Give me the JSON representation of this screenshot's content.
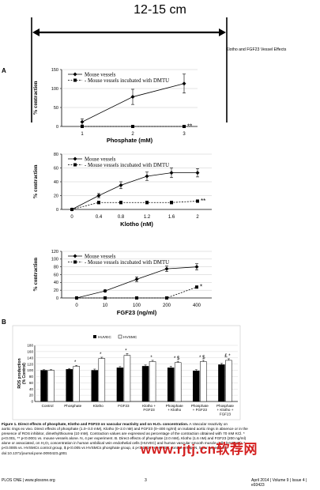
{
  "ruler": {
    "label": "12-15 cm"
  },
  "header": {
    "running_title": "Klotho and FGF23 Vessel Effects"
  },
  "panel_labels": {
    "a": "A",
    "b": "B"
  },
  "chart_data": [
    {
      "type": "line",
      "panel": "A-top",
      "x_categories": [
        "1",
        "2",
        "3"
      ],
      "xlabel": "Phosphate (mM)",
      "ylabel": "% contraction",
      "ylim": [
        0,
        150
      ],
      "yticks": [
        "0",
        "50",
        "100",
        "150"
      ],
      "series": [
        {
          "name": "Mouse vessels",
          "style": "solid-diamond",
          "values": [
            12,
            78,
            113
          ],
          "errors": [
            8,
            20,
            25
          ]
        },
        {
          "name": "Mouse vessels incubated with DMTU",
          "style": "dashed-square",
          "values": [
            0,
            0,
            0
          ],
          "errors": [
            0,
            0,
            0
          ]
        }
      ],
      "annotation": "**"
    },
    {
      "type": "line",
      "panel": "A-middle",
      "x_categories": [
        "0",
        "0.4",
        "0.8",
        "1.2",
        "1.6",
        "2"
      ],
      "xlabel": "Klotho (nM)",
      "ylabel": "% contraction",
      "ylim": [
        0,
        80
      ],
      "yticks": [
        "0",
        "20",
        "40",
        "60",
        "80"
      ],
      "series": [
        {
          "name": "Mouse vessels",
          "style": "solid-diamond",
          "values": [
            0,
            20,
            35,
            48,
            53,
            53
          ],
          "errors": [
            0,
            3,
            5,
            6,
            7,
            6
          ]
        },
        {
          "name": "Mouse vessels incubated with DMTU",
          "style": "dashed-square",
          "values": [
            0,
            10,
            10,
            10,
            10,
            12
          ],
          "errors": [
            0,
            2,
            2,
            2,
            2,
            2
          ]
        }
      ],
      "annotation": "**"
    },
    {
      "type": "line",
      "panel": "A-bottom",
      "x_categories": [
        "0",
        "10",
        "100",
        "200",
        "400"
      ],
      "xlabel": "FGF23 (ng/ml)",
      "ylabel": "% contraction",
      "ylim": [
        0,
        120
      ],
      "yticks": [
        "0",
        "20",
        "40",
        "60",
        "80",
        "100",
        "120"
      ],
      "series": [
        {
          "name": "Mouse vessels",
          "style": "solid-diamond",
          "values": [
            0,
            18,
            48,
            75,
            80
          ],
          "errors": [
            0,
            3,
            6,
            7,
            8
          ]
        },
        {
          "name": "Mouse vessels incubated with DMTU",
          "style": "dashed-square",
          "values": [
            0,
            0,
            0,
            0,
            28
          ],
          "errors": [
            0,
            0,
            0,
            0,
            3
          ]
        }
      ],
      "annotation": "*"
    },
    {
      "type": "bar",
      "panel": "B",
      "categories": [
        "Control",
        "Phosphate",
        "Klotho",
        "FGF23",
        "Klotho + FGF23",
        "Phosphate + Klotho",
        "Phosphate + FGF23",
        "Phosphate + Klotho + FGF23"
      ],
      "category_lines": [
        [
          "Control"
        ],
        [
          "Phosphate"
        ],
        [
          "Klotho"
        ],
        [
          "FGF23"
        ],
        [
          "Klotho +",
          "FGF23"
        ],
        [
          "Phosphate",
          "+ Klotho"
        ],
        [
          "Phosphate",
          "+ FGF23"
        ],
        [
          "Phosphate",
          "+ Klotho +",
          "FGF23"
        ]
      ],
      "ylabel_lines": [
        "ROS production",
        "(% Control)"
      ],
      "ylim": [
        0,
        180
      ],
      "yticks": [
        "0",
        "20",
        "40",
        "60",
        "80",
        "100",
        "120",
        "140",
        "160",
        "180"
      ],
      "legend_position": "top",
      "series": [
        {
          "name": "HUVEC",
          "color": "#000000",
          "values": [
            100,
            103,
            100,
            108,
            113,
            108,
            98,
            118
          ],
          "errors": [
            2,
            3,
            4,
            4,
            4,
            5,
            4,
            4
          ]
        },
        {
          "name": "HVSMC",
          "color": "#ffffff",
          "values": [
            100,
            113,
            138,
            148,
            128,
            125,
            128,
            132
          ],
          "errors": [
            2,
            3,
            4,
            6,
            4,
            4,
            4,
            5
          ]
        }
      ],
      "annotations": [
        {
          "index": 1,
          "label": "*"
        },
        {
          "index": 2,
          "label": "*"
        },
        {
          "index": 3,
          "label": "*"
        },
        {
          "index": 4,
          "label": "*"
        },
        {
          "index": 5,
          "label": "* $"
        },
        {
          "index": 6,
          "label": "* $"
        },
        {
          "index": 7,
          "label": "£ *"
        }
      ]
    }
  ],
  "caption": {
    "bold_lead": "Figure 1. Direct effects of phosphate, Klotho and FGF23 on vascular reactivity and on H₂O₂ concentration.",
    "lines": [
      " A.Vascular reactivity on",
      "aortic rings ex vivo. Direct effects of phosphate (1.0–3.0 mM), Klotho (0–2.0 nM) and FGF23 (0–400 ng/ml) on isolated aortic rings in absence or in the",
      "presence of ROS inhibitor, dimethylthiourea (10 mM). Contraction values are expressed as percentage of the contraction obtained with 70 mM KCl. *",
      "p<0.001, ** p<0.0001 vs. mouse vessels alone. N, 4 per experiment. B. Direct effects of phosphate (2.0 mM), Klotho (1.6 nM) and FGF23 (200 ng/ml)",
      "alone or associated, on H₂O₂ concentration in human umbilical vein endothelial cells (HUVEC) and human vascular smooth muscle cells (HVSMC). *",
      "p<0.0005 vs. HVSMCs control group, $ p<0.005 vs HVSMCs phosphate group, £ p<0.0005 vs HUVEC control group. N, 5 per experiment.",
      "doi:10.1371/journal.pone.0093423.g001"
    ]
  },
  "footer": {
    "left_lines": [
      "PLOS ONE | www.plosone.org"
    ],
    "page": "3",
    "right": "April 2014 | Volume 9 | Issue 4 | e93423"
  },
  "watermark": "www.rjtj.cn软荐网"
}
